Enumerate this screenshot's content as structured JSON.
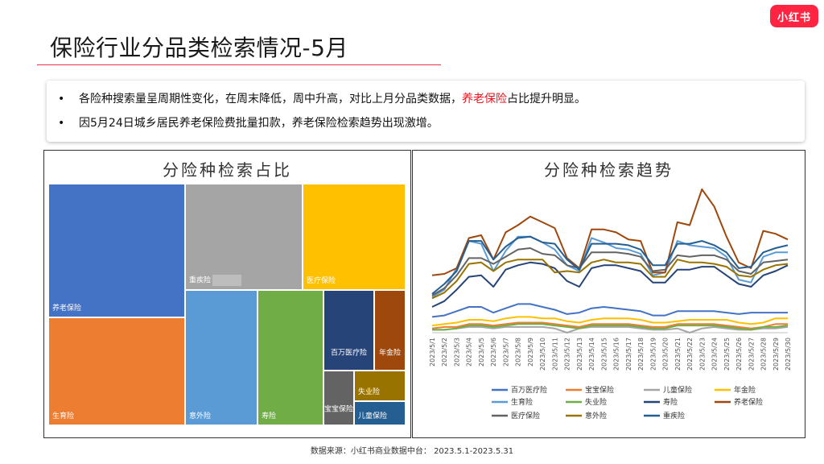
{
  "brand": {
    "logo_text": "小红书",
    "color": "#ff2442"
  },
  "page": {
    "title": "保险行业分品类检索情况-5月"
  },
  "summary": {
    "bullet_marker": "•",
    "bullet1_pre": "各险种搜索量呈周期性变化，在周末降低，周中升高，对比上月分品类数据，",
    "bullet1_highlight": "养老保险",
    "bullet1_post": "占比提升明显。",
    "bullet2": "因5月24日城乡居民养老保险费批量扣款，养老保险检索趋势出现激增。"
  },
  "source": {
    "text": "数据来源：小红书商业数据中台：   2023.5.1-2023.5.31"
  },
  "chart_data": [
    {
      "type": "treemap",
      "title": "分险种检索占比",
      "items": [
        {
          "name": "养老保险",
          "label": "养老保险",
          "color": "#4472c4"
        },
        {
          "name": "生育险",
          "label": "生育险",
          "color": "#ed7d31"
        },
        {
          "name": "重疾险",
          "label": "重疾险",
          "color": "#a5a5a5"
        },
        {
          "name": "医疗保险",
          "label": "医疗保险",
          "color": "#ffc000"
        },
        {
          "name": "意外险",
          "label": "意外险",
          "color": "#5b9bd5"
        },
        {
          "name": "寿险",
          "label": "寿险",
          "color": "#70ad47"
        },
        {
          "name": "百万医疗险",
          "label": "百万医疗险",
          "color": "#264478"
        },
        {
          "name": "年金险",
          "label": "年金险",
          "color": "#9e480e"
        },
        {
          "name": "宝宝保险",
          "label": "宝宝保险",
          "color": "#636363"
        },
        {
          "name": "失业险",
          "label": "失业险",
          "color": "#997300"
        },
        {
          "name": "儿童保险",
          "label": "儿童保险",
          "color": "#255e91"
        }
      ]
    },
    {
      "type": "line",
      "title": "分险种检索趋势",
      "x": [
        "2023/5/1",
        "2023/5/2",
        "2023/5/3",
        "2023/5/4",
        "2023/5/5",
        "2023/5/6",
        "2023/5/7",
        "2023/5/8",
        "2023/5/9",
        "2023/5/10",
        "2023/5/11",
        "2023/5/12",
        "2023/5/13",
        "2023/5/14",
        "2023/5/15",
        "2023/5/16",
        "2023/5/17",
        "2023/5/18",
        "2023/5/19",
        "2023/5/20",
        "2023/5/21",
        "2023/5/22",
        "2023/5/23",
        "2023/5/24",
        "2023/5/25",
        "2023/5/26",
        "2023/5/27",
        "2023/5/28",
        "2023/5/29",
        "2023/5/30"
      ],
      "ylim": [
        0,
        100
      ],
      "series": [
        {
          "name": "百万医疗险",
          "color": "#4472c4",
          "values": [
            11,
            12,
            15,
            18,
            18,
            14,
            17,
            20,
            20,
            18,
            16,
            13,
            14,
            17,
            18,
            17,
            16,
            15,
            12,
            12,
            15,
            15,
            15,
            15,
            14,
            13,
            14,
            14,
            14,
            14
          ]
        },
        {
          "name": "宝宝保险",
          "color": "#ed7d31",
          "values": [
            3,
            4,
            4,
            6,
            6,
            5,
            6,
            7,
            7,
            7,
            6,
            5,
            4,
            6,
            6,
            6,
            6,
            5,
            4,
            4,
            6,
            6,
            6,
            6,
            5,
            4,
            3,
            4,
            6,
            6
          ]
        },
        {
          "name": "儿童保险",
          "color": "#a5a5a5",
          "values": [
            2,
            2,
            3,
            4,
            4,
            3,
            4,
            4,
            4,
            4,
            3,
            0,
            3,
            4,
            4,
            4,
            4,
            3,
            2,
            2,
            3,
            0,
            3,
            4,
            3,
            2,
            2,
            3,
            3,
            4
          ]
        },
        {
          "name": "年金险",
          "color": "#ffc000",
          "values": [
            5,
            6,
            7,
            9,
            9,
            8,
            10,
            11,
            11,
            10,
            10,
            8,
            7,
            9,
            10,
            10,
            10,
            9,
            7,
            7,
            8,
            9,
            9,
            9,
            9,
            7,
            6,
            7,
            10,
            10
          ]
        },
        {
          "name": "生育险",
          "color": "#5b9bd5",
          "values": [
            25,
            30,
            45,
            64,
            62,
            43,
            57,
            67,
            67,
            63,
            58,
            47,
            43,
            66,
            63,
            59,
            58,
            55,
            40,
            42,
            64,
            61,
            60,
            59,
            53,
            37,
            35,
            53,
            56,
            56
          ]
        },
        {
          "name": "失业险",
          "color": "#70ad47",
          "values": [
            2,
            2,
            3,
            5,
            5,
            4,
            5,
            6,
            6,
            6,
            5,
            4,
            3,
            5,
            5,
            5,
            5,
            4,
            3,
            3,
            5,
            5,
            5,
            5,
            4,
            3,
            2,
            4,
            4,
            5
          ]
        },
        {
          "name": "寿险",
          "color": "#264478",
          "values": [
            18,
            22,
            30,
            39,
            40,
            32,
            44,
            47,
            49,
            48,
            45,
            36,
            32,
            45,
            47,
            47,
            45,
            43,
            35,
            35,
            44,
            44,
            46,
            46,
            40,
            34,
            32,
            40,
            43,
            47
          ]
        },
        {
          "name": "养老保险",
          "color": "#9e480e",
          "values": [
            40,
            41,
            45,
            66,
            68,
            51,
            70,
            75,
            81,
            77,
            73,
            52,
            45,
            72,
            72,
            70,
            65,
            64,
            42,
            42,
            77,
            75,
            100,
            88,
            67,
            49,
            45,
            71,
            69,
            65
          ]
        },
        {
          "name": "医疗保险",
          "color": "#636363",
          "values": [
            26,
            31,
            40,
            52,
            52,
            48,
            53,
            58,
            59,
            55,
            54,
            47,
            45,
            56,
            56,
            56,
            55,
            53,
            43,
            44,
            54,
            53,
            54,
            54,
            51,
            43,
            41,
            49,
            50,
            51
          ]
        },
        {
          "name": "意外险",
          "color": "#997300",
          "values": [
            24,
            28,
            36,
            48,
            49,
            43,
            49,
            51,
            51,
            51,
            42,
            43,
            42,
            49,
            51,
            49,
            49,
            48,
            39,
            39,
            51,
            49,
            49,
            48,
            46,
            40,
            39,
            44,
            47,
            48
          ]
        },
        {
          "name": "重疾险",
          "color": "#255e91",
          "values": [
            27,
            34,
            43,
            64,
            64,
            51,
            60,
            66,
            67,
            63,
            62,
            51,
            44,
            62,
            62,
            62,
            61,
            58,
            47,
            47,
            62,
            62,
            64,
            61,
            56,
            45,
            46,
            56,
            59,
            61
          ]
        }
      ]
    }
  ]
}
